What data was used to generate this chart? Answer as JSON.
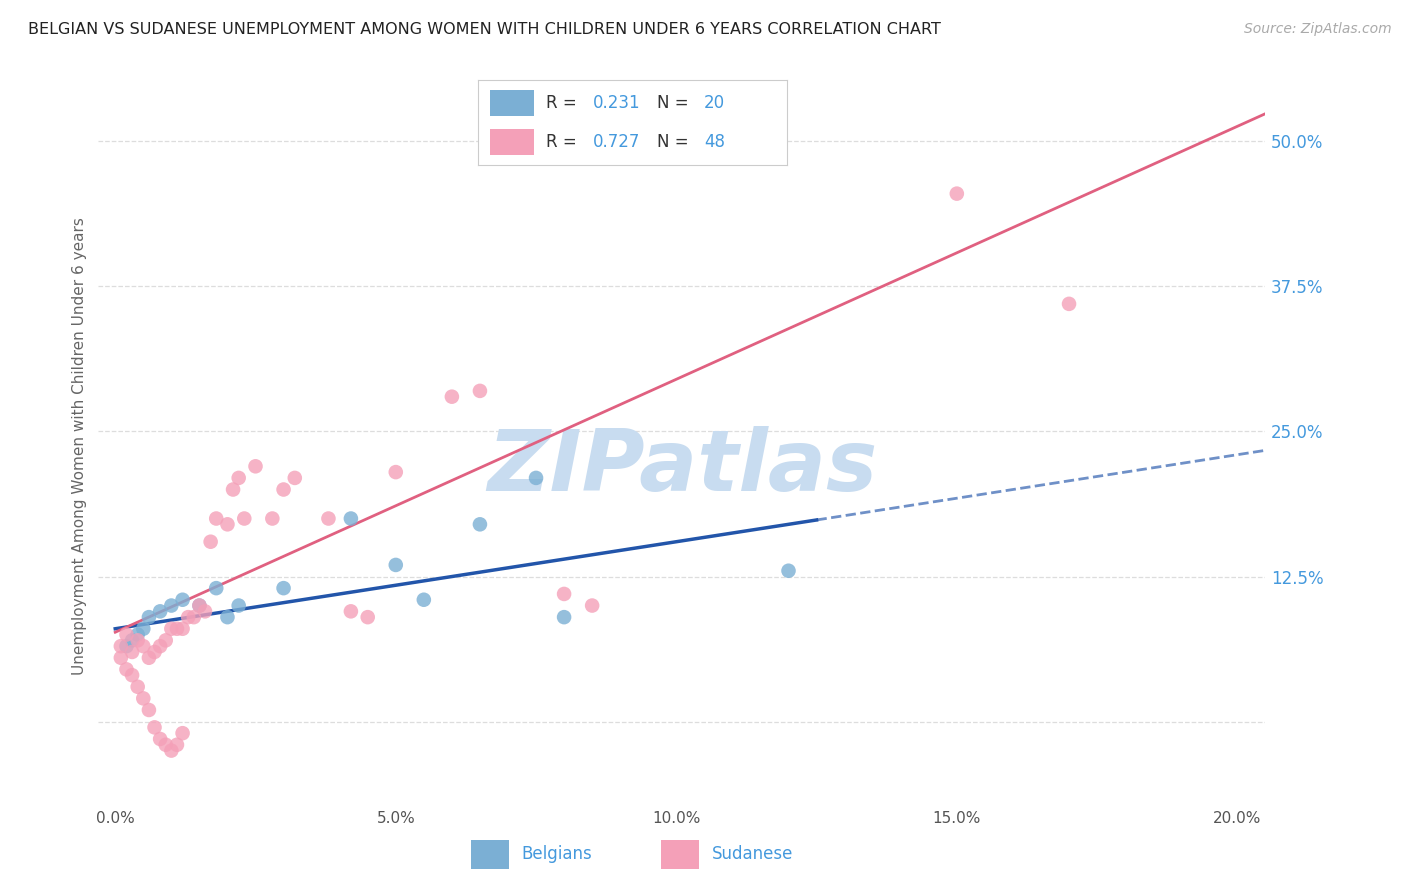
{
  "title": "BELGIAN VS SUDANESE UNEMPLOYMENT AMONG WOMEN WITH CHILDREN UNDER 6 YEARS CORRELATION CHART",
  "source": "Source: ZipAtlas.com",
  "ylabel": "Unemployment Among Women with Children Under 6 years",
  "xtick_vals": [
    0.0,
    0.05,
    0.1,
    0.15,
    0.2
  ],
  "xtick_labels": [
    "0.0%",
    "5.0%",
    "10.0%",
    "15.0%",
    "20.0%"
  ],
  "ytick_right_vals": [
    0.125,
    0.25,
    0.375,
    0.5
  ],
  "ytick_right_labels": [
    "12.5%",
    "25.0%",
    "37.5%",
    "50.0%"
  ],
  "xlim": [
    -0.003,
    0.205
  ],
  "ylim": [
    -0.07,
    0.545
  ],
  "belgian_R": "0.231",
  "belgian_N": "20",
  "sudanese_R": "0.727",
  "sudanese_N": "48",
  "belgian_scatter_color": "#7BAFD4",
  "sudanese_scatter_color": "#F4A0B8",
  "belgian_line_color": "#2255AA",
  "sudanese_line_color": "#E06080",
  "watermark_color": "#C8DCF0",
  "background_color": "#FFFFFF",
  "grid_color": "#DDDDDD",
  "belgian_x": [
    0.002,
    0.003,
    0.004,
    0.005,
    0.006,
    0.008,
    0.01,
    0.012,
    0.015,
    0.018,
    0.02,
    0.022,
    0.03,
    0.042,
    0.05,
    0.055,
    0.065,
    0.075,
    0.08,
    0.12
  ],
  "belgian_y": [
    0.065,
    0.07,
    0.075,
    0.08,
    0.09,
    0.095,
    0.1,
    0.105,
    0.1,
    0.115,
    0.09,
    0.1,
    0.115,
    0.175,
    0.135,
    0.105,
    0.17,
    0.21,
    0.09,
    0.13
  ],
  "sudanese_x": [
    0.001,
    0.001,
    0.002,
    0.002,
    0.003,
    0.003,
    0.004,
    0.004,
    0.005,
    0.005,
    0.006,
    0.006,
    0.007,
    0.007,
    0.008,
    0.008,
    0.009,
    0.009,
    0.01,
    0.01,
    0.011,
    0.011,
    0.012,
    0.012,
    0.013,
    0.014,
    0.015,
    0.016,
    0.017,
    0.018,
    0.02,
    0.021,
    0.022,
    0.023,
    0.025,
    0.028,
    0.03,
    0.032,
    0.038,
    0.042,
    0.045,
    0.05,
    0.06,
    0.065,
    0.08,
    0.085,
    0.15,
    0.17
  ],
  "sudanese_y": [
    0.055,
    0.065,
    0.045,
    0.075,
    0.04,
    0.06,
    0.03,
    0.07,
    0.02,
    0.065,
    0.01,
    0.055,
    -0.005,
    0.06,
    -0.015,
    0.065,
    -0.02,
    0.07,
    -0.025,
    0.08,
    -0.02,
    0.08,
    -0.01,
    0.08,
    0.09,
    0.09,
    0.1,
    0.095,
    0.155,
    0.175,
    0.17,
    0.2,
    0.21,
    0.175,
    0.22,
    0.175,
    0.2,
    0.21,
    0.175,
    0.095,
    0.09,
    0.215,
    0.28,
    0.285,
    0.11,
    0.1,
    0.455,
    0.36
  ],
  "bel_line_x0": 0.0,
  "bel_line_x_solid_end": 0.125,
  "bel_line_x1": 0.205,
  "sud_line_x0": 0.0,
  "sud_line_x1": 0.205,
  "bel_intercept": 0.08,
  "bel_slope": 0.75,
  "sud_intercept": 0.077,
  "sud_slope": 2.18
}
